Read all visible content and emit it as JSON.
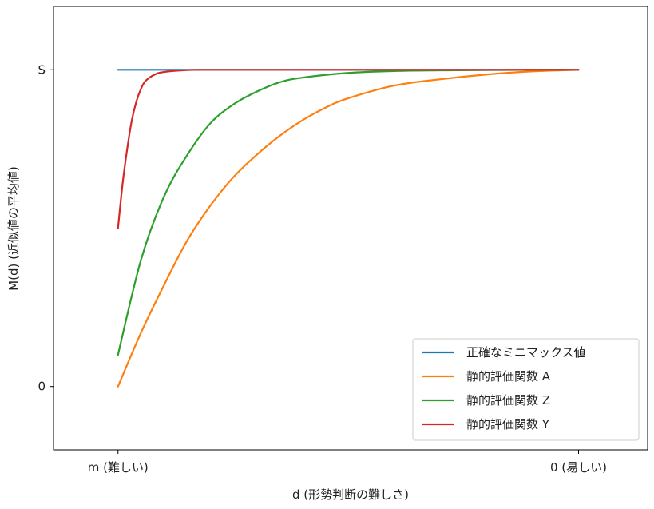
{
  "chart_data": {
    "type": "line",
    "title": "",
    "xlabel": "d (形勢判断の難しさ)",
    "ylabel": "M(d) (近似値の平均値)",
    "xlim": [
      -0.14,
      1.15
    ],
    "ylim": [
      -0.2,
      1.2
    ],
    "x_ticks": [
      {
        "value": 0,
        "label": "m (難しい)"
      },
      {
        "value": 1,
        "label": "0 (易しい)"
      }
    ],
    "y_ticks": [
      {
        "value": 0,
        "label": "0"
      },
      {
        "value": 1,
        "label": "S"
      }
    ],
    "legend_position": "lower-right",
    "series": [
      {
        "name": "正確なミニマックス値",
        "color": "#1f77b4",
        "x": [
          0,
          0.1,
          0.2,
          0.3,
          0.4,
          0.5,
          0.6,
          0.7,
          0.8,
          0.9,
          1.0
        ],
        "y": [
          1,
          1,
          1,
          1,
          1,
          1,
          1,
          1,
          1,
          1,
          1
        ]
      },
      {
        "name": "静的評価関数 A",
        "color": "#ff7f0e",
        "x": [
          0,
          0.05,
          0.1,
          0.15,
          0.2,
          0.25,
          0.3,
          0.35,
          0.4,
          0.45,
          0.5,
          0.6,
          0.7,
          0.8,
          0.9,
          1.0
        ],
        "y": [
          0,
          0.17,
          0.32,
          0.46,
          0.57,
          0.66,
          0.73,
          0.79,
          0.84,
          0.88,
          0.91,
          0.95,
          0.97,
          0.985,
          0.995,
          1.0
        ]
      },
      {
        "name": "静的評価関数 Z",
        "color": "#2ca02c",
        "x": [
          0,
          0.05,
          0.1,
          0.15,
          0.2,
          0.25,
          0.3,
          0.35,
          0.4,
          0.5,
          0.6,
          0.7,
          0.8,
          0.9,
          1.0
        ],
        "y": [
          0.1,
          0.4,
          0.6,
          0.73,
          0.83,
          0.89,
          0.93,
          0.96,
          0.975,
          0.99,
          0.996,
          0.998,
          0.999,
          1.0,
          1.0
        ]
      },
      {
        "name": "静的評価関数 Y",
        "color": "#d62728",
        "x": [
          0,
          0.01,
          0.02,
          0.03,
          0.04,
          0.05,
          0.06,
          0.08,
          0.1,
          0.15,
          0.2,
          0.3,
          0.5,
          1.0
        ],
        "y": [
          0.5,
          0.64,
          0.75,
          0.84,
          0.9,
          0.94,
          0.965,
          0.985,
          0.993,
          0.999,
          1.0,
          1.0,
          1.0,
          1.0
        ]
      }
    ]
  }
}
